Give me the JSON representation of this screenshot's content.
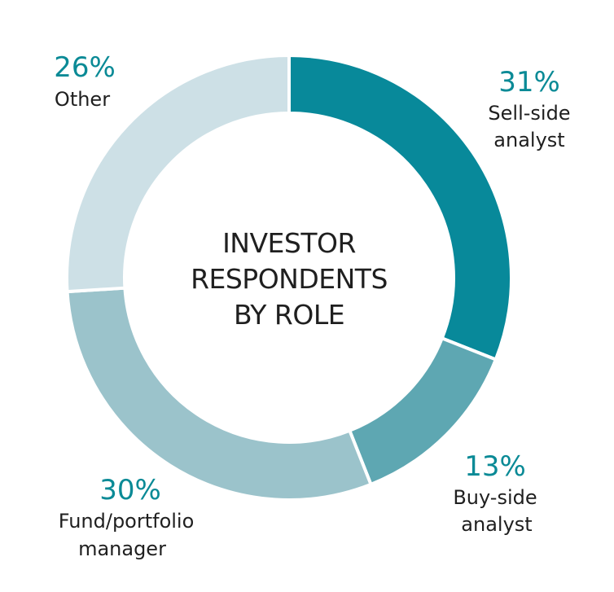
{
  "chart_data": {
    "type": "pie",
    "variant": "donut",
    "center_title": [
      "INVESTOR",
      "RESPONDENTS",
      "BY ROLE"
    ],
    "label_color": "#0a8a96",
    "slices": [
      {
        "label": [
          "Sell-side",
          "analyst"
        ],
        "value": 31,
        "value_label": "31%",
        "color": "#08899a"
      },
      {
        "label": [
          "Buy-side",
          "analyst"
        ],
        "value": 13,
        "value_label": "13%",
        "color": "#5ea7b2"
      },
      {
        "label": [
          "Fund/portfolio",
          "manager"
        ],
        "value": 30,
        "value_label": "30%",
        "color": "#9bc3cb"
      },
      {
        "label": [
          "Other"
        ],
        "value": 26,
        "value_label": "26%",
        "color": "#cde0e6"
      }
    ]
  }
}
